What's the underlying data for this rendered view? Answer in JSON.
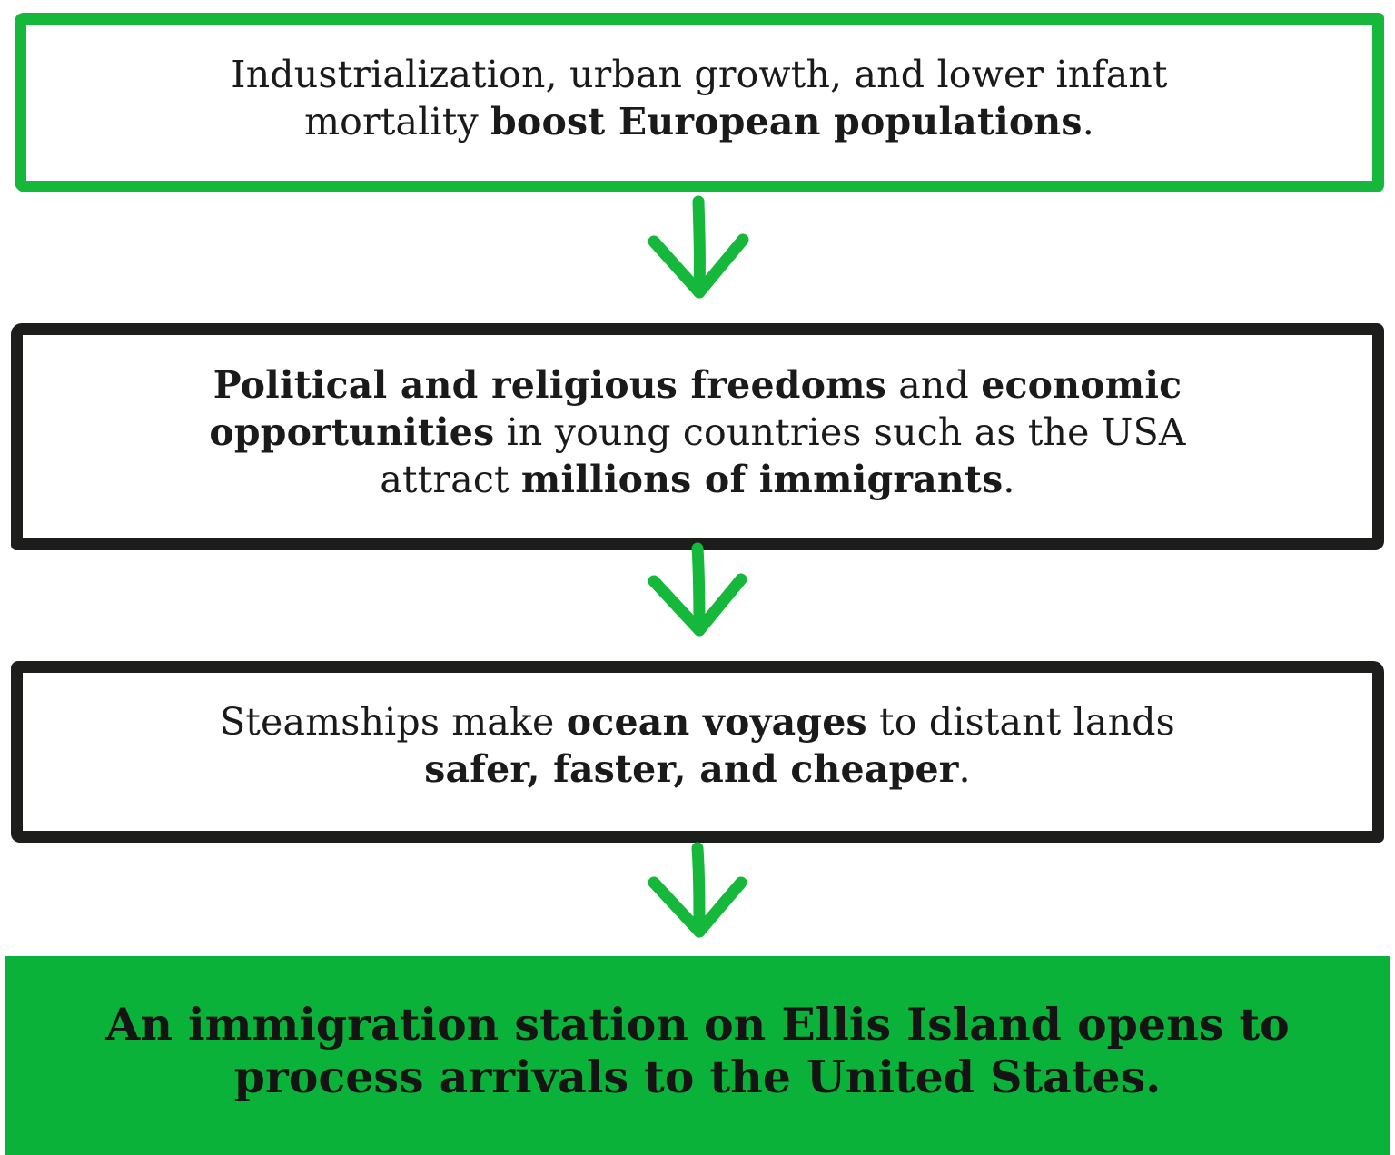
{
  "colors": {
    "green": "#15b83a",
    "result_green": "#0bb23a",
    "black": "#1d1d1b"
  },
  "steps": [
    {
      "segments": [
        {
          "text": "Industrialization, urban growth, and lower infant mortality ",
          "bold": false
        },
        {
          "text": "boost European populations",
          "bold": true
        },
        {
          "text": ".",
          "bold": false
        }
      ]
    },
    {
      "segments": [
        {
          "text": "Political and religious freedoms",
          "bold": true
        },
        {
          "text": " and ",
          "bold": false
        },
        {
          "text": "economic opportunities",
          "bold": true
        },
        {
          "text": " in young countries such as the USA attract ",
          "bold": false
        },
        {
          "text": "millions of immigrants",
          "bold": true
        },
        {
          "text": ".",
          "bold": false
        }
      ]
    },
    {
      "segments": [
        {
          "text": "Steamships make ",
          "bold": false
        },
        {
          "text": "ocean voyages",
          "bold": true
        },
        {
          "text": " to distant lands ",
          "bold": false
        },
        {
          "text": "safer, faster, and cheaper",
          "bold": true
        },
        {
          "text": ".",
          "bold": false
        }
      ]
    }
  ],
  "result": {
    "text": "An immigration station on Ellis Island opens to process arrivals to the United States."
  },
  "icons": {
    "arrow": "down-arrow-icon"
  }
}
